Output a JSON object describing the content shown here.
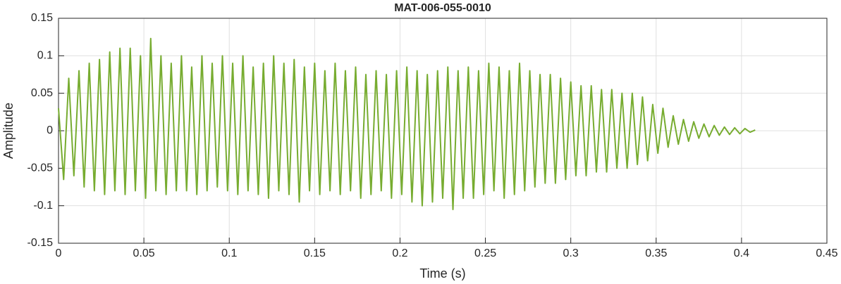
{
  "chart_data": {
    "type": "line",
    "title": "MAT-006-055-0010",
    "x_label": "Time (s)",
    "y_label": "Amplitude",
    "xlim": [
      0,
      0.45
    ],
    "xticks": [
      0,
      0.05,
      0.1,
      0.15,
      0.2,
      0.25,
      0.3,
      0.35,
      0.4,
      0.45
    ],
    "ylim": [
      -0.15,
      0.15
    ],
    "yticks": [
      -0.15,
      -0.1,
      -0.05,
      0,
      0.05,
      0.1,
      0.15
    ],
    "grid": true,
    "series": [
      {
        "color": "#77ac30",
        "x": [
          0,
          0.003,
          0.006,
          0.009,
          0.012,
          0.015,
          0.018,
          0.021,
          0.024,
          0.027,
          0.03,
          0.033,
          0.036,
          0.039,
          0.042,
          0.045,
          0.048,
          0.051,
          0.054,
          0.057,
          0.06,
          0.063,
          0.066,
          0.069,
          0.072,
          0.075,
          0.078,
          0.081,
          0.084,
          0.087,
          0.09,
          0.093,
          0.096,
          0.099,
          0.102,
          0.105,
          0.108,
          0.111,
          0.114,
          0.117,
          0.12,
          0.123,
          0.126,
          0.129,
          0.132,
          0.135,
          0.138,
          0.141,
          0.144,
          0.147,
          0.15,
          0.153,
          0.156,
          0.159,
          0.162,
          0.165,
          0.168,
          0.171,
          0.174,
          0.177,
          0.18,
          0.183,
          0.186,
          0.189,
          0.192,
          0.195,
          0.198,
          0.201,
          0.204,
          0.207,
          0.21,
          0.213,
          0.216,
          0.219,
          0.222,
          0.225,
          0.228,
          0.231,
          0.234,
          0.237,
          0.24,
          0.243,
          0.246,
          0.249,
          0.252,
          0.255,
          0.258,
          0.261,
          0.264,
          0.267,
          0.27,
          0.273,
          0.276,
          0.279,
          0.282,
          0.285,
          0.288,
          0.291,
          0.294,
          0.297,
          0.3,
          0.303,
          0.306,
          0.309,
          0.312,
          0.315,
          0.318,
          0.321,
          0.324,
          0.327,
          0.33,
          0.333,
          0.336,
          0.339,
          0.342,
          0.345,
          0.348,
          0.351,
          0.354,
          0.357,
          0.36,
          0.363,
          0.366,
          0.369,
          0.372,
          0.375,
          0.378,
          0.381,
          0.384,
          0.387,
          0.39,
          0.393,
          0.396,
          0.399,
          0.402,
          0.405,
          0.408
        ],
        "values": [
          0.03,
          -0.065,
          0.07,
          -0.06,
          0.08,
          -0.075,
          0.09,
          -0.08,
          0.095,
          -0.085,
          0.105,
          -0.08,
          0.11,
          -0.085,
          0.11,
          -0.08,
          0.1,
          -0.09,
          0.123,
          -0.08,
          0.1,
          -0.085,
          0.09,
          -0.08,
          0.1,
          -0.08,
          0.085,
          -0.085,
          0.1,
          -0.08,
          0.09,
          -0.075,
          0.1,
          -0.08,
          0.09,
          -0.085,
          0.1,
          -0.08,
          0.085,
          -0.085,
          0.09,
          -0.09,
          0.1,
          -0.08,
          0.09,
          -0.085,
          0.095,
          -0.095,
          0.085,
          -0.08,
          0.09,
          -0.085,
          0.08,
          -0.08,
          0.09,
          -0.085,
          0.08,
          -0.08,
          0.085,
          -0.09,
          0.075,
          -0.085,
          0.08,
          -0.08,
          0.075,
          -0.09,
          0.08,
          -0.085,
          0.085,
          -0.095,
          0.08,
          -0.1,
          0.075,
          -0.095,
          0.08,
          -0.09,
          0.085,
          -0.105,
          0.08,
          -0.09,
          0.085,
          -0.09,
          0.08,
          -0.085,
          0.09,
          -0.08,
          0.085,
          -0.09,
          0.08,
          -0.085,
          0.09,
          -0.08,
          0.08,
          -0.075,
          0.075,
          -0.07,
          0.075,
          -0.07,
          0.07,
          -0.065,
          0.065,
          -0.06,
          0.06,
          -0.06,
          0.06,
          -0.055,
          0.055,
          -0.055,
          0.055,
          -0.05,
          0.05,
          -0.05,
          0.05,
          -0.045,
          0.045,
          -0.04,
          0.035,
          -0.03,
          0.03,
          -0.022,
          0.02,
          -0.018,
          0.015,
          -0.014,
          0.012,
          -0.01,
          0.009,
          -0.008,
          0.007,
          -0.006,
          0.005,
          -0.005,
          0.004,
          -0.004,
          0.003,
          -0.002,
          0.001
        ]
      }
    ]
  }
}
